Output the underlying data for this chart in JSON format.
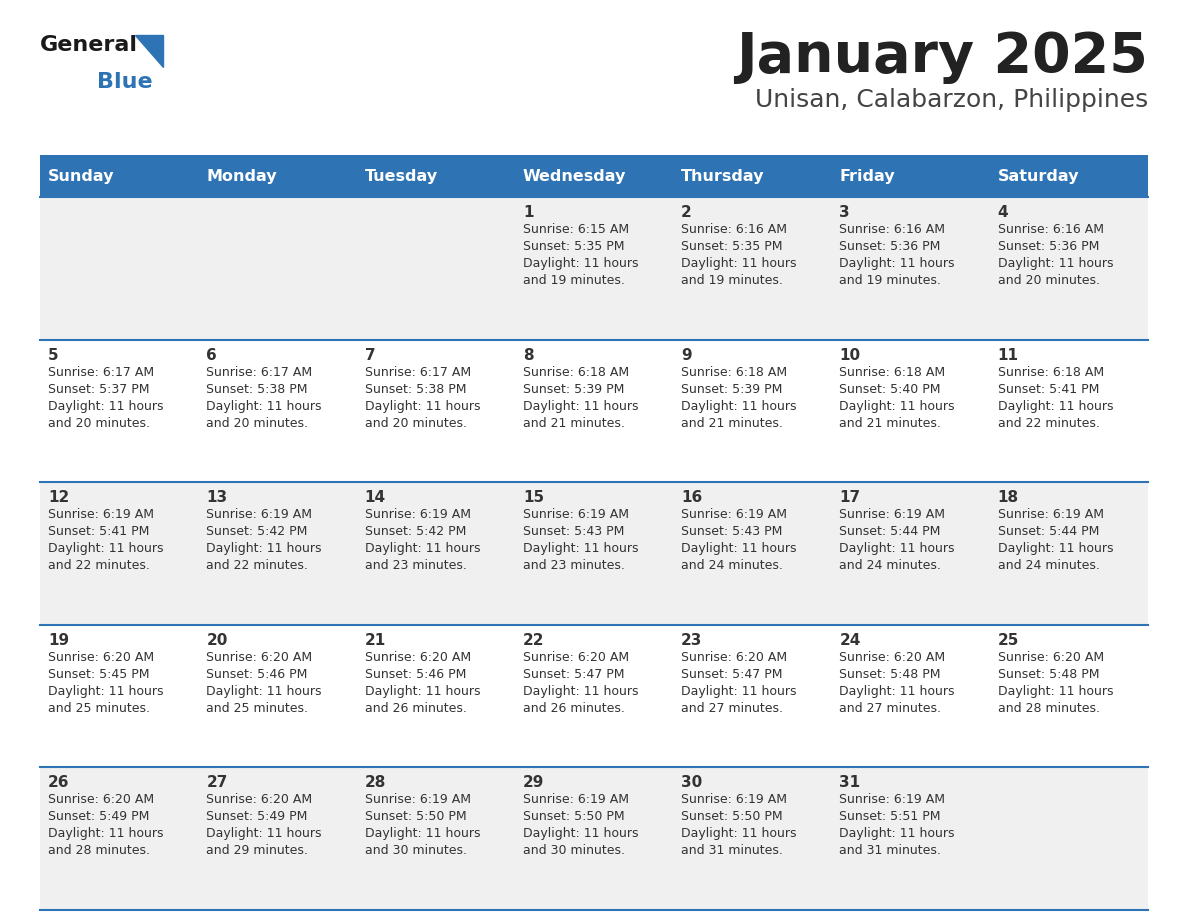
{
  "title": "January 2025",
  "subtitle": "Unisan, Calabarzon, Philippines",
  "days_of_week": [
    "Sunday",
    "Monday",
    "Tuesday",
    "Wednesday",
    "Thursday",
    "Friday",
    "Saturday"
  ],
  "header_bg": "#2E74B5",
  "header_text_color": "#FFFFFF",
  "row_bg_odd": "#F0F0F0",
  "row_bg_even": "#FFFFFF",
  "row_divider_color": "#2E74B5",
  "cell_text_color": "#333333",
  "title_color": "#222222",
  "subtitle_color": "#444444",
  "logo_general_color": "#1a1a1a",
  "logo_blue_color": "#2E74B5",
  "calendar_data": [
    {
      "day": 1,
      "col": 3,
      "row": 0,
      "sunrise": "6:15 AM",
      "sunset": "5:35 PM",
      "daylight": "11 hours and 19 minutes."
    },
    {
      "day": 2,
      "col": 4,
      "row": 0,
      "sunrise": "6:16 AM",
      "sunset": "5:35 PM",
      "daylight": "11 hours and 19 minutes."
    },
    {
      "day": 3,
      "col": 5,
      "row": 0,
      "sunrise": "6:16 AM",
      "sunset": "5:36 PM",
      "daylight": "11 hours and 19 minutes."
    },
    {
      "day": 4,
      "col": 6,
      "row": 0,
      "sunrise": "6:16 AM",
      "sunset": "5:36 PM",
      "daylight": "11 hours and 20 minutes."
    },
    {
      "day": 5,
      "col": 0,
      "row": 1,
      "sunrise": "6:17 AM",
      "sunset": "5:37 PM",
      "daylight": "11 hours and 20 minutes."
    },
    {
      "day": 6,
      "col": 1,
      "row": 1,
      "sunrise": "6:17 AM",
      "sunset": "5:38 PM",
      "daylight": "11 hours and 20 minutes."
    },
    {
      "day": 7,
      "col": 2,
      "row": 1,
      "sunrise": "6:17 AM",
      "sunset": "5:38 PM",
      "daylight": "11 hours and 20 minutes."
    },
    {
      "day": 8,
      "col": 3,
      "row": 1,
      "sunrise": "6:18 AM",
      "sunset": "5:39 PM",
      "daylight": "11 hours and 21 minutes."
    },
    {
      "day": 9,
      "col": 4,
      "row": 1,
      "sunrise": "6:18 AM",
      "sunset": "5:39 PM",
      "daylight": "11 hours and 21 minutes."
    },
    {
      "day": 10,
      "col": 5,
      "row": 1,
      "sunrise": "6:18 AM",
      "sunset": "5:40 PM",
      "daylight": "11 hours and 21 minutes."
    },
    {
      "day": 11,
      "col": 6,
      "row": 1,
      "sunrise": "6:18 AM",
      "sunset": "5:41 PM",
      "daylight": "11 hours and 22 minutes."
    },
    {
      "day": 12,
      "col": 0,
      "row": 2,
      "sunrise": "6:19 AM",
      "sunset": "5:41 PM",
      "daylight": "11 hours and 22 minutes."
    },
    {
      "day": 13,
      "col": 1,
      "row": 2,
      "sunrise": "6:19 AM",
      "sunset": "5:42 PM",
      "daylight": "11 hours and 22 minutes."
    },
    {
      "day": 14,
      "col": 2,
      "row": 2,
      "sunrise": "6:19 AM",
      "sunset": "5:42 PM",
      "daylight": "11 hours and 23 minutes."
    },
    {
      "day": 15,
      "col": 3,
      "row": 2,
      "sunrise": "6:19 AM",
      "sunset": "5:43 PM",
      "daylight": "11 hours and 23 minutes."
    },
    {
      "day": 16,
      "col": 4,
      "row": 2,
      "sunrise": "6:19 AM",
      "sunset": "5:43 PM",
      "daylight": "11 hours and 24 minutes."
    },
    {
      "day": 17,
      "col": 5,
      "row": 2,
      "sunrise": "6:19 AM",
      "sunset": "5:44 PM",
      "daylight": "11 hours and 24 minutes."
    },
    {
      "day": 18,
      "col": 6,
      "row": 2,
      "sunrise": "6:19 AM",
      "sunset": "5:44 PM",
      "daylight": "11 hours and 24 minutes."
    },
    {
      "day": 19,
      "col": 0,
      "row": 3,
      "sunrise": "6:20 AM",
      "sunset": "5:45 PM",
      "daylight": "11 hours and 25 minutes."
    },
    {
      "day": 20,
      "col": 1,
      "row": 3,
      "sunrise": "6:20 AM",
      "sunset": "5:46 PM",
      "daylight": "11 hours and 25 minutes."
    },
    {
      "day": 21,
      "col": 2,
      "row": 3,
      "sunrise": "6:20 AM",
      "sunset": "5:46 PM",
      "daylight": "11 hours and 26 minutes."
    },
    {
      "day": 22,
      "col": 3,
      "row": 3,
      "sunrise": "6:20 AM",
      "sunset": "5:47 PM",
      "daylight": "11 hours and 26 minutes."
    },
    {
      "day": 23,
      "col": 4,
      "row": 3,
      "sunrise": "6:20 AM",
      "sunset": "5:47 PM",
      "daylight": "11 hours and 27 minutes."
    },
    {
      "day": 24,
      "col": 5,
      "row": 3,
      "sunrise": "6:20 AM",
      "sunset": "5:48 PM",
      "daylight": "11 hours and 27 minutes."
    },
    {
      "day": 25,
      "col": 6,
      "row": 3,
      "sunrise": "6:20 AM",
      "sunset": "5:48 PM",
      "daylight": "11 hours and 28 minutes."
    },
    {
      "day": 26,
      "col": 0,
      "row": 4,
      "sunrise": "6:20 AM",
      "sunset": "5:49 PM",
      "daylight": "11 hours and 28 minutes."
    },
    {
      "day": 27,
      "col": 1,
      "row": 4,
      "sunrise": "6:20 AM",
      "sunset": "5:49 PM",
      "daylight": "11 hours and 29 minutes."
    },
    {
      "day": 28,
      "col": 2,
      "row": 4,
      "sunrise": "6:19 AM",
      "sunset": "5:50 PM",
      "daylight": "11 hours and 30 minutes."
    },
    {
      "day": 29,
      "col": 3,
      "row": 4,
      "sunrise": "6:19 AM",
      "sunset": "5:50 PM",
      "daylight": "11 hours and 30 minutes."
    },
    {
      "day": 30,
      "col": 4,
      "row": 4,
      "sunrise": "6:19 AM",
      "sunset": "5:50 PM",
      "daylight": "11 hours and 31 minutes."
    },
    {
      "day": 31,
      "col": 5,
      "row": 4,
      "sunrise": "6:19 AM",
      "sunset": "5:51 PM",
      "daylight": "11 hours and 31 minutes."
    }
  ]
}
